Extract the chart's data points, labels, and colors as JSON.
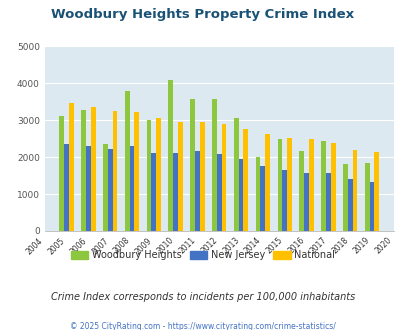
{
  "title": "Woodbury Heights Property Crime Index",
  "years": [
    2004,
    2005,
    2006,
    2007,
    2008,
    2009,
    2010,
    2011,
    2012,
    2013,
    2014,
    2015,
    2016,
    2017,
    2018,
    2019,
    2020
  ],
  "woodbury": [
    null,
    3100,
    3280,
    2350,
    3800,
    3000,
    4080,
    3560,
    3560,
    3070,
    2000,
    2500,
    2160,
    2430,
    1800,
    1840,
    null
  ],
  "new_jersey": [
    null,
    2360,
    2290,
    2220,
    2300,
    2110,
    2110,
    2160,
    2080,
    1940,
    1760,
    1640,
    1560,
    1570,
    1420,
    1320,
    null
  ],
  "national": [
    null,
    3450,
    3350,
    3250,
    3220,
    3060,
    2960,
    2940,
    2900,
    2760,
    2620,
    2510,
    2480,
    2370,
    2200,
    2130,
    null
  ],
  "color_woodbury": "#8dc63f",
  "color_nj": "#4472c4",
  "color_national": "#ffc000",
  "background_color": "#dce9f0",
  "ylim": [
    0,
    5000
  ],
  "ylabel_ticks": [
    0,
    1000,
    2000,
    3000,
    4000,
    5000
  ],
  "subtitle": "Crime Index corresponds to incidents per 100,000 inhabitants",
  "footer": "© 2025 CityRating.com - https://www.cityrating.com/crime-statistics/",
  "title_color": "#1a5276",
  "subtitle_color": "#333333",
  "footer_color": "#4472c4"
}
